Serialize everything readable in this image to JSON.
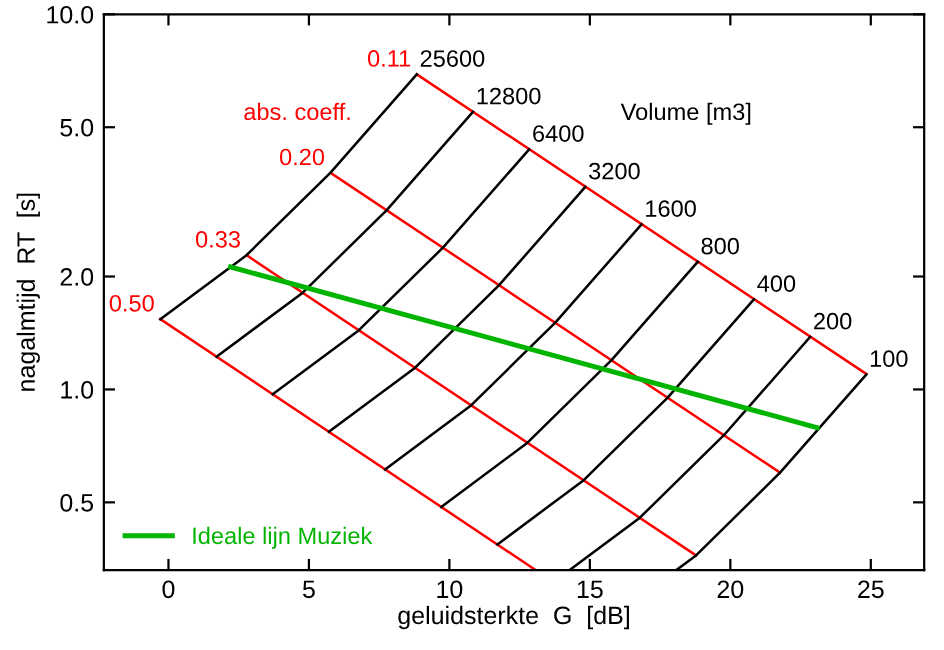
{
  "chart_data": {
    "type": "line",
    "xlabel": "geluidsterkte  G  [dB]",
    "ylabel": "nagalmtijd  RT  [s]",
    "xlim": [
      -2.3,
      26.9
    ],
    "ylim": [
      0.33,
      10
    ],
    "log": "y",
    "xticks": [
      0,
      5,
      10,
      15,
      20,
      25
    ],
    "yticks": [
      {
        "value": 0.5,
        "label": "0.5"
      },
      {
        "value": 1.0,
        "label": "1.0"
      },
      {
        "value": 2.0,
        "label": "2.0"
      },
      {
        "value": 5.0,
        "label": "5.0"
      },
      {
        "value": 10.0,
        "label": "10.0"
      }
    ],
    "grid": false,
    "legend": "bottom left",
    "line_style": "solid",
    "marker": "none",
    "annotations": [
      "abs. coeff.",
      "Volume [m3]"
    ],
    "series": [
      {
        "name": "0.11",
        "color": "#ff0000",
        "x": [
          8.84,
          24.84
        ],
        "values": [
          6.92,
          1.1
        ]
      },
      {
        "name": "0.20",
        "color": "#ff0000",
        "x": [
          5.77,
          21.77
        ],
        "values": [
          3.78,
          0.6
        ]
      },
      {
        "name": "0.33",
        "color": "#ff0000",
        "x": [
          2.78,
          18.78
        ],
        "values": [
          2.28,
          0.361
        ]
      },
      {
        "name": "0.50",
        "color": "#ff0000",
        "x": [
          -0.29,
          13.07
        ],
        "values": [
          1.54,
          0.33
        ]
      },
      {
        "name": "25600",
        "color": "#000000",
        "x": [
          -0.29,
          2.78,
          5.77,
          8.84
        ],
        "values": [
          1.538,
          2.28,
          3.784,
          6.918
        ]
      },
      {
        "name": "12800",
        "color": "#000000",
        "x": [
          1.71,
          4.78,
          7.77,
          10.84
        ],
        "values": [
          1.222,
          1.811,
          3.006,
          5.495
        ]
      },
      {
        "name": "6400",
        "color": "#000000",
        "x": [
          3.71,
          6.78,
          9.77,
          12.84
        ],
        "values": [
          0.971,
          1.439,
          2.388,
          4.365
        ]
      },
      {
        "name": "3200",
        "color": "#000000",
        "x": [
          5.71,
          8.78,
          11.77,
          14.84
        ],
        "values": [
          0.771,
          1.143,
          1.897,
          3.467
        ]
      },
      {
        "name": "1600",
        "color": "#000000",
        "x": [
          7.71,
          10.78,
          13.77,
          16.84
        ],
        "values": [
          0.612,
          0.908,
          1.507,
          2.754
        ]
      },
      {
        "name": "800",
        "color": "#000000",
        "x": [
          9.71,
          12.78,
          15.77,
          18.84
        ],
        "values": [
          0.486,
          0.721,
          1.197,
          2.188
        ]
      },
      {
        "name": "400",
        "color": "#000000",
        "x": [
          11.71,
          14.78,
          17.77,
          20.84
        ],
        "values": [
          0.386,
          0.573,
          0.951,
          1.738
        ]
      },
      {
        "name": "200",
        "color": "#000000",
        "x": [
          14.28,
          16.78,
          19.77,
          22.84
        ],
        "values": [
          0.33,
          0.455,
          0.755,
          1.38
        ]
      },
      {
        "name": "100",
        "color": "#000000",
        "x": [
          18.08,
          18.78,
          21.77,
          24.84
        ],
        "values": [
          0.33,
          0.361,
          0.6,
          1.096
        ]
      },
      {
        "name": "Ideale lijn Muziek",
        "color": "#00b400",
        "x": [
          2.21,
          23.09
        ],
        "values": [
          2.12,
          0.791
        ]
      }
    ]
  }
}
